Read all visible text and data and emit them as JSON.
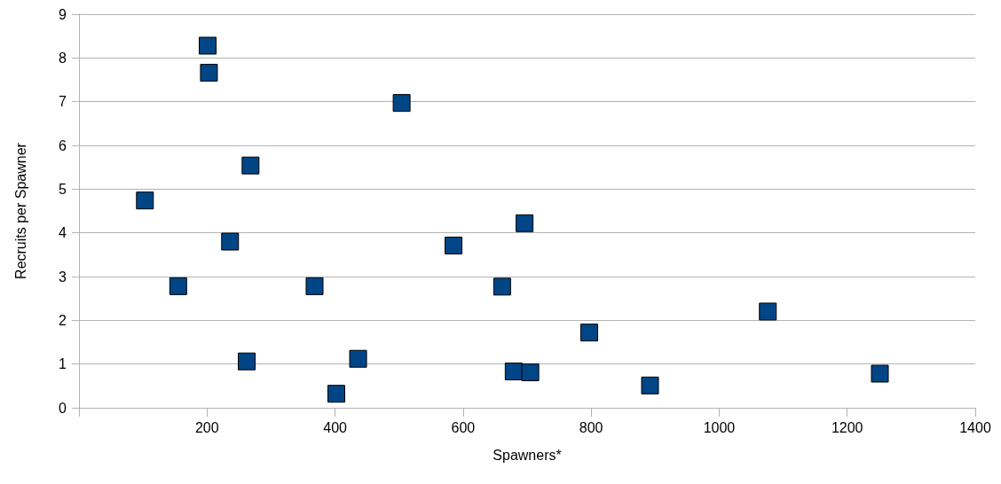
{
  "chart_data": {
    "type": "scatter",
    "xlabel": "Spawners*",
    "ylabel": "Recruits per Spawner",
    "x": [
      103,
      155,
      201,
      203,
      236,
      262,
      268,
      368,
      402,
      436,
      504,
      585,
      661,
      679,
      696,
      705,
      797,
      892,
      1076,
      1251
    ],
    "values": [
      4.74,
      2.78,
      8.28,
      7.66,
      3.8,
      1.06,
      5.54,
      2.78,
      0.32,
      1.12,
      6.97,
      3.71,
      2.77,
      0.83,
      4.22,
      0.81,
      1.72,
      0.51,
      2.2,
      0.78
    ],
    "color": "#004586",
    "marker": "square",
    "grid": "y",
    "xlim": [
      0,
      1400
    ],
    "xticks": [
      {
        "value": 0,
        "label": null
      },
      200,
      400,
      600,
      800,
      1000,
      1200,
      1400
    ],
    "ylim": [
      0,
      9
    ],
    "yticks": [
      0,
      1,
      2,
      3,
      4,
      5,
      6,
      7,
      8,
      9
    ]
  }
}
